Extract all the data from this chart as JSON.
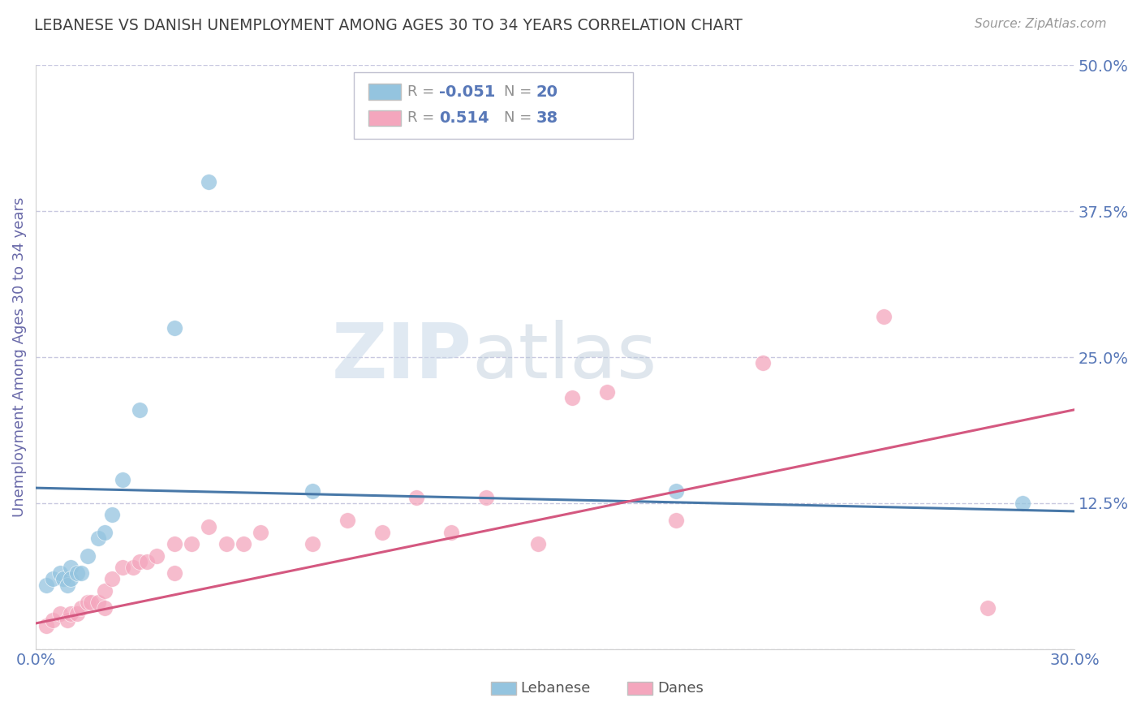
{
  "title": "LEBANESE VS DANISH UNEMPLOYMENT AMONG AGES 30 TO 34 YEARS CORRELATION CHART",
  "source": "Source: ZipAtlas.com",
  "ylabel": "Unemployment Among Ages 30 to 34 years",
  "xlim": [
    0.0,
    0.3
  ],
  "ylim": [
    0.0,
    0.5
  ],
  "xticks": [
    0.0,
    0.05,
    0.1,
    0.15,
    0.2,
    0.25,
    0.3
  ],
  "xtick_labels": [
    "0.0%",
    "",
    "",
    "",
    "",
    "",
    "30.0%"
  ],
  "yticks": [
    0.0,
    0.125,
    0.25,
    0.375,
    0.5
  ],
  "ytick_labels": [
    "",
    "12.5%",
    "25.0%",
    "37.5%",
    "50.0%"
  ],
  "blue_color": "#94c4df",
  "pink_color": "#f4a6bd",
  "blue_line_color": "#4878a8",
  "pink_line_color": "#d45880",
  "grid_color": "#c8c8e0",
  "title_color": "#404040",
  "axis_label_color": "#6868a8",
  "tick_label_color": "#5878b8",
  "blue_line_start_y": 0.138,
  "blue_line_end_y": 0.118,
  "pink_line_start_y": 0.022,
  "pink_line_end_y": 0.205,
  "lebanese_x": [
    0.003,
    0.005,
    0.007,
    0.008,
    0.009,
    0.01,
    0.01,
    0.012,
    0.013,
    0.015,
    0.018,
    0.02,
    0.022,
    0.025,
    0.03,
    0.04,
    0.05,
    0.08,
    0.185,
    0.285
  ],
  "lebanese_y": [
    0.055,
    0.06,
    0.065,
    0.06,
    0.055,
    0.07,
    0.06,
    0.065,
    0.065,
    0.08,
    0.095,
    0.1,
    0.115,
    0.145,
    0.205,
    0.275,
    0.4,
    0.135,
    0.135,
    0.125
  ],
  "danes_x": [
    0.003,
    0.005,
    0.007,
    0.009,
    0.01,
    0.012,
    0.013,
    0.015,
    0.016,
    0.018,
    0.02,
    0.02,
    0.022,
    0.025,
    0.028,
    0.03,
    0.032,
    0.035,
    0.04,
    0.04,
    0.045,
    0.05,
    0.055,
    0.06,
    0.065,
    0.08,
    0.09,
    0.1,
    0.11,
    0.12,
    0.13,
    0.145,
    0.155,
    0.165,
    0.185,
    0.21,
    0.245,
    0.275
  ],
  "danes_y": [
    0.02,
    0.025,
    0.03,
    0.025,
    0.03,
    0.03,
    0.035,
    0.04,
    0.04,
    0.04,
    0.05,
    0.035,
    0.06,
    0.07,
    0.07,
    0.075,
    0.075,
    0.08,
    0.065,
    0.09,
    0.09,
    0.105,
    0.09,
    0.09,
    0.1,
    0.09,
    0.11,
    0.1,
    0.13,
    0.1,
    0.13,
    0.09,
    0.215,
    0.22,
    0.11,
    0.245,
    0.285,
    0.035
  ]
}
